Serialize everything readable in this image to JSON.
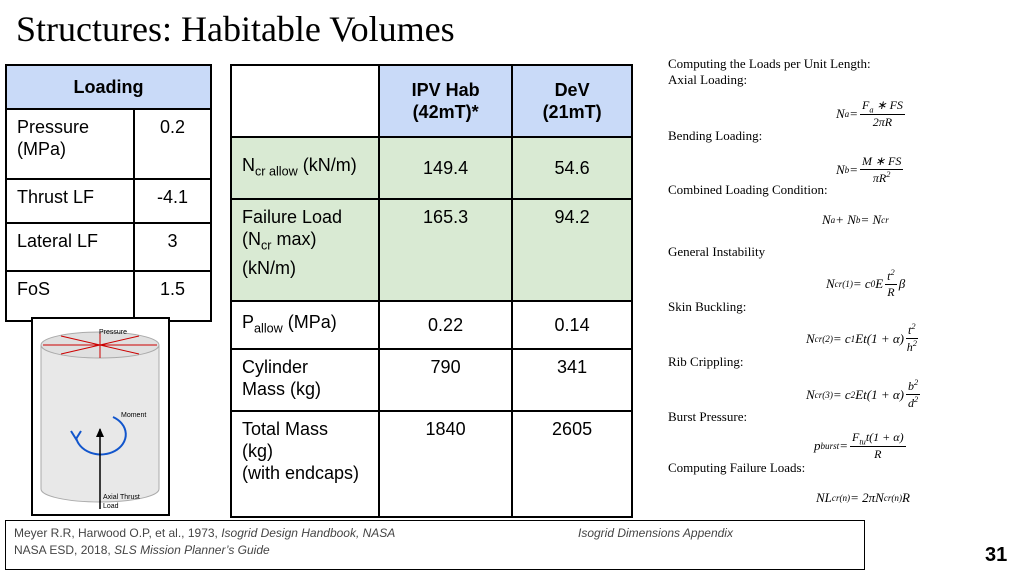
{
  "title": "Structures: Habitable Volumes",
  "loading_table": {
    "header": "Loading",
    "header_fill": "#c9daf8",
    "rows": [
      {
        "label": [
          "Pressure",
          "(MPa)"
        ],
        "value": 0.2
      },
      {
        "label": [
          "Thrust LF"
        ],
        "value": -4.1
      },
      {
        "label": [
          "Lateral LF"
        ],
        "value": 3
      },
      {
        "label": [
          "FoS"
        ],
        "value": 1.5
      }
    ]
  },
  "diagram": {
    "labels": [
      "Pressure",
      "Moment",
      "Axial Thrust",
      "Load"
    ]
  },
  "main_table": {
    "header_fill": "#c9daf8",
    "columns": [
      [
        "IPV Hab",
        "(42mT)*"
      ],
      [
        "DeV",
        "(21mT)"
      ]
    ],
    "rows": [
      {
        "fill": "#d9ead3",
        "label": [
          [
            "N",
            {
              "sub": "cr allow"
            },
            " (kN/m)"
          ]
        ],
        "values": [
          149.4,
          54.6
        ]
      },
      {
        "fill": "#d9ead3",
        "label": [
          [
            "Failure Load"
          ],
          [
            "(N",
            {
              "sub": "cr"
            },
            " max)"
          ],
          [
            "(kN/m)"
          ]
        ],
        "values": [
          165.3,
          94.2
        ]
      },
      {
        "fill": "#ffffff",
        "label": [
          [
            "P",
            {
              "sub": "allow"
            },
            " (MPa)"
          ]
        ],
        "values": [
          0.22,
          0.14
        ]
      },
      {
        "fill": "#ffffff",
        "label": [
          [
            "Cylinder"
          ],
          [
            "Mass (kg)"
          ]
        ],
        "values": [
          790,
          341
        ]
      },
      {
        "fill": "#ffffff",
        "label": [
          [
            "Total Mass"
          ],
          [
            "(kg)"
          ],
          [
            "(with endcaps)"
          ]
        ],
        "values": [
          1840,
          2605
        ]
      }
    ]
  },
  "equations": {
    "headings": [
      "Computing the Loads per Unit Length:",
      "Axial Loading:",
      "Bending Loading:",
      "Combined Loading Condition:",
      "General Instability",
      "Skin Buckling:",
      "Rib Crippling:",
      "Burst Pressure:",
      "Computing Failure Loads:"
    ],
    "formulas": [
      [
        "N",
        {
          "sub": "a"
        },
        " = ",
        {
          "frac": [
            [
              "F",
              {
                "sub": "a"
              },
              " ∗ FS"
            ],
            [
              "2πR"
            ]
          ]
        }
      ],
      [
        "N",
        {
          "sub": "b"
        },
        " = ",
        {
          "frac": [
            [
              "M ∗ FS"
            ],
            [
              "πR",
              {
                "sup": "2"
              }
            ]
          ]
        }
      ],
      [
        "N",
        {
          "sub": "a"
        },
        " + N",
        {
          "sub": "b"
        },
        " = N",
        {
          "sub": "cr"
        }
      ],
      [
        "N",
        {
          "sub": "cr(1)"
        },
        " = c",
        {
          "sub": "0"
        },
        "E",
        {
          "frac": [
            [
              "t",
              {
                "sup": "2"
              }
            ],
            [
              "R"
            ]
          ]
        },
        "β"
      ],
      [
        "N",
        {
          "sub": "cr(2)"
        },
        " = c",
        {
          "sub": "1"
        },
        "Et(1 + α)",
        {
          "frac": [
            [
              "t",
              {
                "sup": "2"
              }
            ],
            [
              "h",
              {
                "sup": "2"
              }
            ]
          ]
        }
      ],
      [
        "N",
        {
          "sub": "cr(3)"
        },
        " = c",
        {
          "sub": "2"
        },
        "Et(1 + α)",
        {
          "frac": [
            [
              "b",
              {
                "sup": "2"
              }
            ],
            [
              "d",
              {
                "sup": "2"
              }
            ]
          ]
        }
      ],
      [
        "p",
        {
          "sub": "burst"
        },
        " = ",
        {
          "frac": [
            [
              "F",
              {
                "sub": "tu"
              },
              "t(1 + α)"
            ],
            [
              "R"
            ]
          ]
        }
      ],
      [
        "NL",
        {
          "sub": "cr(n)"
        },
        " = 2πN",
        {
          "sub": "cr(n)"
        },
        "R"
      ]
    ]
  },
  "footer": {
    "line1": [
      "Meyer R.R, Harwood O.P, et al., 1973, ",
      "Isogrid Design Handbook, NASA"
    ],
    "appendix": "Isogrid Dimensions Appendix",
    "line2": [
      "NASA ESD, 2018, ",
      "SLS Mission Planner’s Guide"
    ]
  },
  "page_number": "31"
}
